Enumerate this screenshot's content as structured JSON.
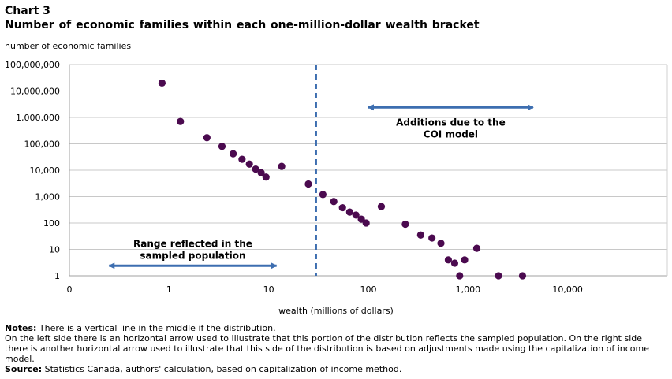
{
  "header": {
    "chart_number": "Chart 3",
    "title": "Number of economic families within each one-million-dollar  wealth bracket"
  },
  "chart_data": {
    "type": "scatter",
    "ylabel": "number of economic families",
    "xlabel": "wealth (millions of dollars)",
    "x_scale": "log",
    "y_scale": "log",
    "y_ticks": [
      {
        "value": 1,
        "label": "1"
      },
      {
        "value": 10,
        "label": "10"
      },
      {
        "value": 100,
        "label": "100"
      },
      {
        "value": 1000,
        "label": "1,000"
      },
      {
        "value": 10000,
        "label": "10,000"
      },
      {
        "value": 100000,
        "label": "100,000"
      },
      {
        "value": 1000000,
        "label": "1,000,000"
      },
      {
        "value": 10000000,
        "label": "10,000,000"
      },
      {
        "value": 100000000,
        "label": "100,000,000"
      }
    ],
    "x_ticks": [
      {
        "value": 0.1,
        "label": "0"
      },
      {
        "value": 1,
        "label": "1"
      },
      {
        "value": 10,
        "label": "10"
      },
      {
        "value": 100,
        "label": "100"
      },
      {
        "value": 1000,
        "label": "1,000"
      },
      {
        "value": 10000,
        "label": "10,000"
      }
    ],
    "xlim": [
      0.1,
      100000
    ],
    "ylim": [
      1,
      100000000
    ],
    "grid": "horizontal",
    "marker_color": "#4b0a4f",
    "points": [
      {
        "x": 0.85,
        "y": 20000000
      },
      {
        "x": 1.3,
        "y": 700000
      },
      {
        "x": 2.4,
        "y": 170000
      },
      {
        "x": 3.4,
        "y": 80000
      },
      {
        "x": 4.4,
        "y": 42000
      },
      {
        "x": 5.4,
        "y": 26000
      },
      {
        "x": 6.4,
        "y": 17000
      },
      {
        "x": 7.4,
        "y": 11000
      },
      {
        "x": 8.4,
        "y": 8000
      },
      {
        "x": 9.4,
        "y": 5500
      },
      {
        "x": 13.5,
        "y": 14000
      },
      {
        "x": 25,
        "y": 3000
      },
      {
        "x": 35,
        "y": 1200
      },
      {
        "x": 45,
        "y": 650
      },
      {
        "x": 55,
        "y": 380
      },
      {
        "x": 65,
        "y": 260
      },
      {
        "x": 75,
        "y": 200
      },
      {
        "x": 85,
        "y": 140
      },
      {
        "x": 95,
        "y": 100
      },
      {
        "x": 135,
        "y": 420
      },
      {
        "x": 235,
        "y": 90
      },
      {
        "x": 335,
        "y": 35
      },
      {
        "x": 435,
        "y": 27
      },
      {
        "x": 535,
        "y": 17
      },
      {
        "x": 635,
        "y": 4
      },
      {
        "x": 735,
        "y": 3
      },
      {
        "x": 825,
        "y": 1
      },
      {
        "x": 925,
        "y": 4
      },
      {
        "x": 1225,
        "y": 11
      },
      {
        "x": 2025,
        "y": 1
      },
      {
        "x": 3525,
        "y": 1
      }
    ],
    "divider_x": 30,
    "divider_color": "#3d6eb0",
    "annotations": {
      "left": {
        "line1": "Range reflected in the",
        "line2": "sampled population",
        "x_from": 0.25,
        "x_to": 12,
        "y_at": 2.4
      },
      "right": {
        "line1": "Additions  due  to the",
        "line2": "COI model",
        "x_from": 100,
        "x_to": 4500,
        "y_at": 2400000
      }
    }
  },
  "notes": {
    "notes_label": "Notes:",
    "notes_line1": " There is a vertical line in the middle if the distribution.",
    "notes_line2": "On the left side there is an horizontal arrow used to illustrate that this portion of the distribution reflects the sampled population. On the right side there is another horizontal arrow used to illustrate that this side of the distribution is based on adjustments made using the capitalization of income model.",
    "source_label": "Source:",
    "source_text": " Statistics Canada, authors' calculation, based on capitalization of income method."
  }
}
